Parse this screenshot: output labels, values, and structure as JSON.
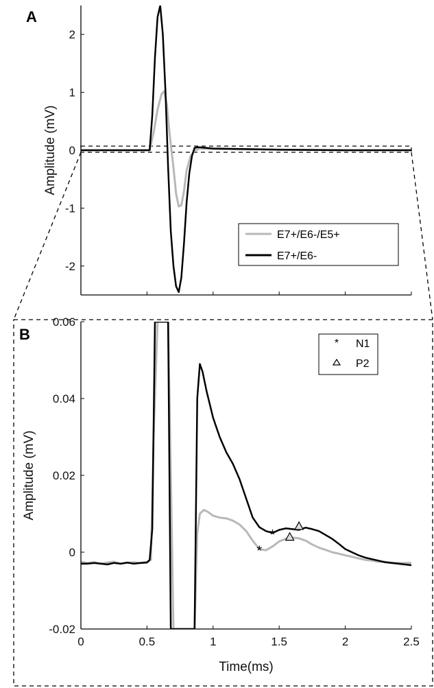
{
  "chart_data": [
    {
      "panel_label": "A",
      "type": "line",
      "xlabel": "",
      "ylabel": "Amplitude (mV)",
      "xlim": [
        0,
        2.5
      ],
      "ylim": [
        -2.5,
        2.5
      ],
      "yticks": [
        -2,
        -1,
        0,
        1,
        2
      ],
      "ytick_labels": [
        "-2",
        "-1",
        "0",
        "1",
        "2"
      ],
      "legend_position": "lower-right",
      "colors": {
        "E7+/E6-/E5+": "#b8b8b8",
        "E7+/E6-": "#000000"
      },
      "series": [
        {
          "name": "E7+/E6-/E5+",
          "x": [
            0,
            0.52,
            0.55,
            0.58,
            0.61,
            0.63,
            0.65,
            0.67,
            0.7,
            0.72,
            0.74,
            0.76,
            0.78,
            0.8,
            0.83,
            0.86,
            0.9,
            1.0,
            1.5,
            2.0,
            2.5
          ],
          "y": [
            0,
            0,
            0.3,
            0.7,
            0.97,
            1.02,
            0.8,
            0.3,
            -0.3,
            -0.75,
            -0.97,
            -0.95,
            -0.7,
            -0.35,
            -0.1,
            -0.01,
            0.03,
            0.02,
            0.01,
            0,
            0
          ]
        },
        {
          "name": "E7+/E6-",
          "x": [
            0,
            0.52,
            0.54,
            0.56,
            0.58,
            0.6,
            0.62,
            0.64,
            0.66,
            0.68,
            0.7,
            0.72,
            0.74,
            0.76,
            0.78,
            0.8,
            0.82,
            0.84,
            0.86,
            0.88,
            0.9,
            1.0,
            1.5,
            2.0,
            2.5
          ],
          "y": [
            0,
            0,
            0.6,
            1.6,
            2.3,
            2.5,
            2.0,
            1.0,
            -0.3,
            -1.4,
            -2.0,
            -2.35,
            -2.45,
            -2.2,
            -1.6,
            -0.9,
            -0.4,
            -0.1,
            0.04,
            0.05,
            0.05,
            0.03,
            0.01,
            0,
            0
          ]
        }
      ]
    },
    {
      "panel_label": "B",
      "type": "line",
      "xlabel": "Time(ms)",
      "ylabel": "Amplitude (mV)",
      "xlim": [
        0,
        2.5
      ],
      "ylim": [
        -0.02,
        0.06
      ],
      "xticks": [
        0,
        0.5,
        1,
        1.5,
        2,
        2.5
      ],
      "xtick_labels": [
        "0",
        "0.5",
        "1",
        "1.5",
        "2",
        "2.5"
      ],
      "yticks": [
        -0.02,
        0,
        0.02,
        0.04,
        0.06
      ],
      "ytick_labels": [
        "-0.02",
        "0",
        "0.02",
        "0.04",
        "0.06"
      ],
      "legend_position": "top-right",
      "marker_legend": [
        {
          "symbol": "*",
          "label": "N1"
        },
        {
          "symbol": "triangle",
          "label": "P2"
        }
      ],
      "series": [
        {
          "name": "E7+/E6-/E5+",
          "x": [
            0,
            0.05,
            0.1,
            0.15,
            0.2,
            0.25,
            0.3,
            0.35,
            0.4,
            0.45,
            0.5,
            0.53,
            0.55,
            0.58,
            0.62,
            0.66,
            0.7,
            0.74,
            0.78,
            0.82,
            0.86,
            0.88,
            0.9,
            0.93,
            0.96,
            1.0,
            1.05,
            1.1,
            1.15,
            1.2,
            1.25,
            1.3,
            1.35,
            1.4,
            1.45,
            1.5,
            1.55,
            1.6,
            1.65,
            1.7,
            1.75,
            1.8,
            1.85,
            1.9,
            1.95,
            2.0,
            2.05,
            2.1,
            2.15,
            2.2,
            2.25,
            2.3,
            2.35,
            2.4,
            2.45,
            2.5
          ],
          "y": [
            -0.0025,
            -0.0028,
            -0.0026,
            -0.003,
            -0.0027,
            -0.0025,
            -0.003,
            -0.0028,
            -0.0026,
            -0.0028,
            -0.0025,
            -0.002,
            0.03,
            0.06,
            0.06,
            0.06,
            -0.02,
            -0.02,
            -0.02,
            -0.02,
            -0.02,
            0.005,
            0.01,
            0.011,
            0.0105,
            0.0095,
            0.009,
            0.0088,
            0.0082,
            0.0072,
            0.0055,
            0.003,
            0.0008,
            0.0005,
            0.0015,
            0.0028,
            0.0035,
            0.0038,
            0.0036,
            0.003,
            0.002,
            0.0012,
            0.0006,
            0.0,
            -0.0004,
            -0.0008,
            -0.0012,
            -0.0016,
            -0.002,
            -0.0022,
            -0.0025,
            -0.0025,
            -0.0027,
            -0.0028,
            -0.0028,
            -0.0028
          ]
        },
        {
          "name": "E7+/E6-",
          "x": [
            0,
            0.05,
            0.1,
            0.15,
            0.2,
            0.25,
            0.3,
            0.35,
            0.4,
            0.45,
            0.5,
            0.52,
            0.54,
            0.56,
            0.64,
            0.66,
            0.68,
            0.7,
            0.84,
            0.86,
            0.88,
            0.9,
            0.92,
            0.95,
            1.0,
            1.05,
            1.1,
            1.15,
            1.2,
            1.25,
            1.3,
            1.35,
            1.4,
            1.45,
            1.5,
            1.55,
            1.6,
            1.65,
            1.7,
            1.75,
            1.8,
            1.85,
            1.9,
            1.95,
            2.0,
            2.05,
            2.1,
            2.15,
            2.2,
            2.25,
            2.3,
            2.35,
            2.4,
            2.45,
            2.5
          ],
          "y": [
            -0.003,
            -0.003,
            -0.0028,
            -0.003,
            -0.0032,
            -0.0028,
            -0.003,
            -0.0027,
            -0.003,
            -0.0028,
            -0.0027,
            -0.002,
            0.006,
            0.06,
            0.06,
            0.06,
            -0.02,
            -0.02,
            -0.02,
            -0.02,
            0.04,
            0.049,
            0.047,
            0.042,
            0.035,
            0.03,
            0.026,
            0.023,
            0.019,
            0.014,
            0.009,
            0.0065,
            0.0055,
            0.005,
            0.0058,
            0.0062,
            0.006,
            0.0058,
            0.0064,
            0.006,
            0.0055,
            0.0045,
            0.0035,
            0.0022,
            0.0008,
            0.0,
            -0.0008,
            -0.0014,
            -0.0018,
            -0.0022,
            -0.0026,
            -0.0028,
            -0.003,
            -0.0032,
            -0.0034
          ]
        }
      ],
      "markers": [
        {
          "series": "E7+/E6-/E5+",
          "type": "N1",
          "x": 1.35,
          "y": 0.0008
        },
        {
          "series": "E7+/E6-",
          "type": "N1",
          "x": 1.45,
          "y": 0.005
        },
        {
          "series": "E7+/E6-/E5+",
          "type": "P2",
          "x": 1.58,
          "y": 0.004
        },
        {
          "series": "E7+/E6-",
          "type": "P2",
          "x": 1.65,
          "y": 0.0068
        }
      ]
    }
  ]
}
